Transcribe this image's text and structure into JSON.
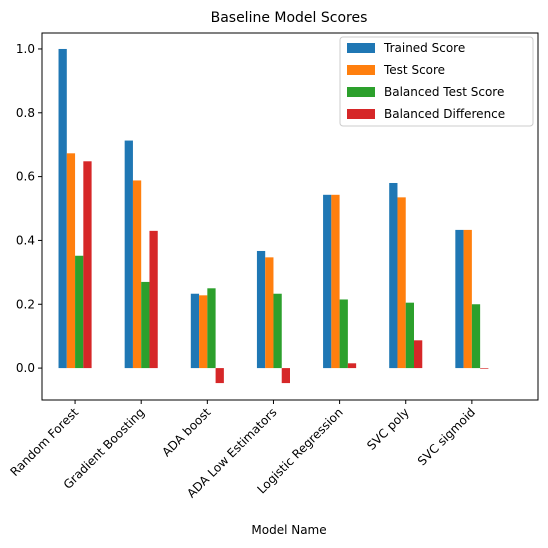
{
  "chart_data": {
    "type": "bar",
    "title": "Baseline Model Scores",
    "xlabel": "Model Name",
    "ylabel": "",
    "ylim": [
      -0.1,
      1.05
    ],
    "yticks": [
      "0.0",
      "0.2",
      "0.4",
      "0.6",
      "0.8",
      "1.0"
    ],
    "ytick_values": [
      0.0,
      0.2,
      0.4,
      0.6,
      0.8,
      1.0
    ],
    "categories": [
      "Random Forest",
      "Gradient Boosting",
      "ADA boost",
      "ADA Low Estimators",
      "Logistic Regression",
      "SVC poly",
      "SVC sigmoid"
    ],
    "legend_position": "top-right",
    "grid": false,
    "series": [
      {
        "name": "Trained Score",
        "color": "#1f77b4",
        "values": [
          1.0,
          0.713,
          0.233,
          0.367,
          0.543,
          0.58,
          0.433
        ]
      },
      {
        "name": "Test Score",
        "color": "#ff7f0e",
        "values": [
          0.673,
          0.588,
          0.228,
          0.347,
          0.543,
          0.535,
          0.433
        ]
      },
      {
        "name": "Balanced Test Score",
        "color": "#2ca02c",
        "values": [
          0.352,
          0.27,
          0.25,
          0.233,
          0.215,
          0.205,
          0.2
        ]
      },
      {
        "name": "Balanced Difference",
        "color": "#d62728",
        "values": [
          0.648,
          0.43,
          -0.047,
          -0.047,
          0.015,
          0.087,
          -0.002
        ]
      }
    ]
  }
}
